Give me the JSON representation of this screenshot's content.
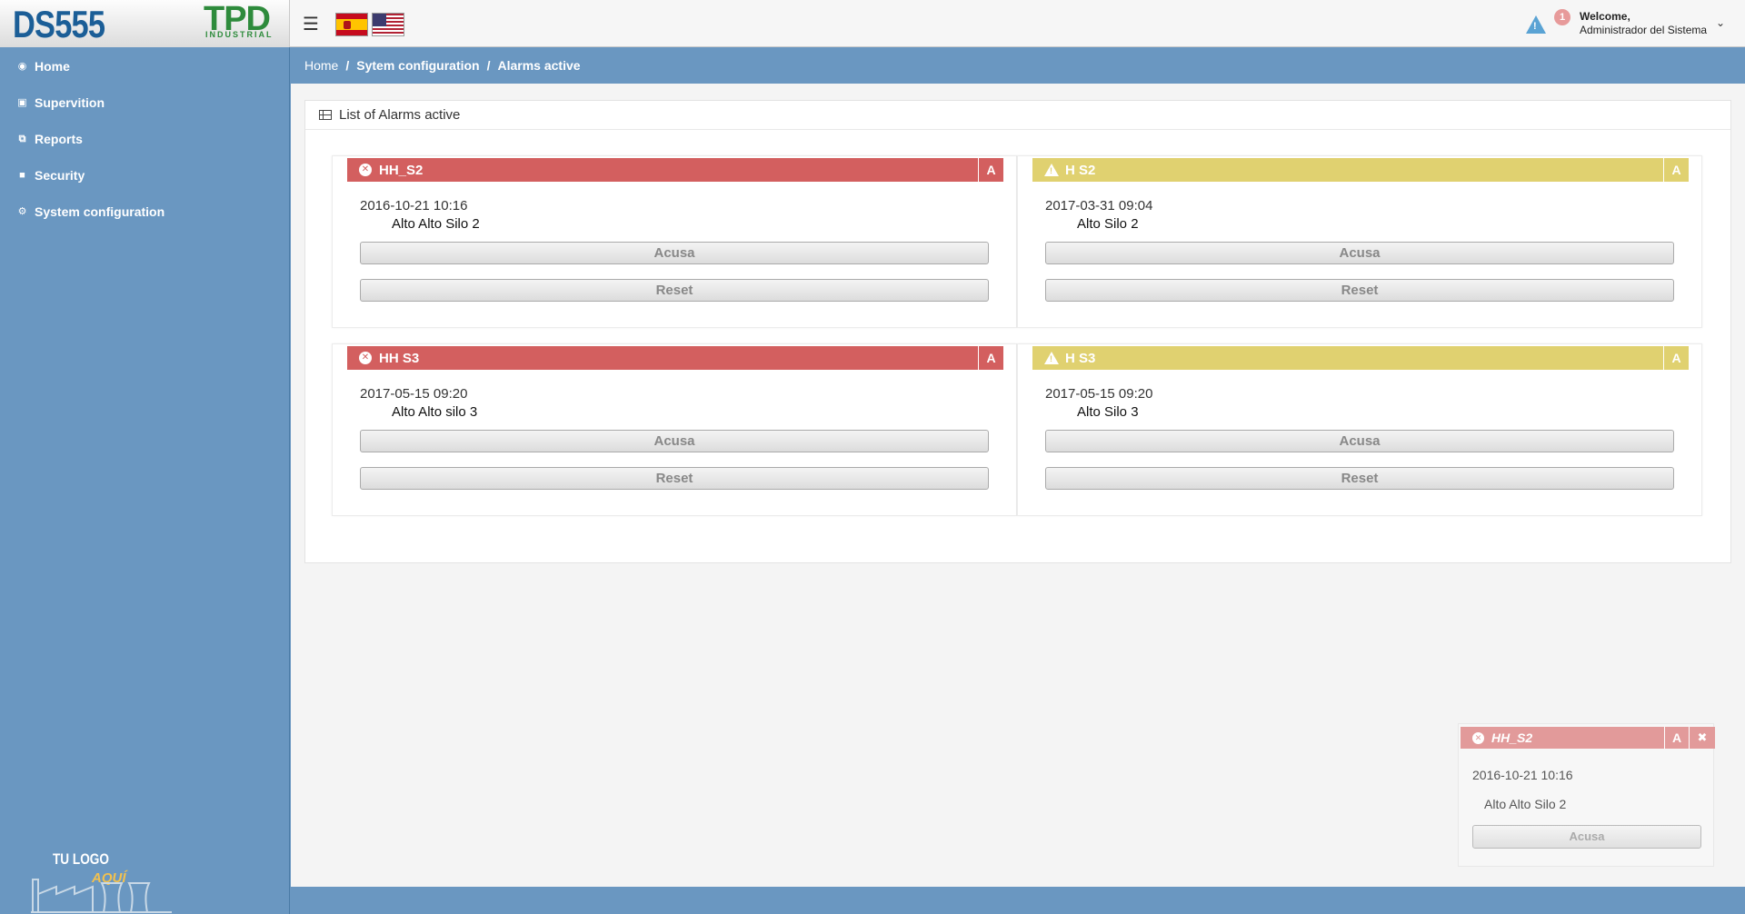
{
  "brand": {
    "logo_left": "DS555",
    "logo_right": "TPD",
    "logo_right_sub": "INDUSTRIAL"
  },
  "header": {
    "notification_count": "1",
    "welcome_line1": "Welcome,",
    "welcome_line2": "Administrador del Sistema"
  },
  "sidebar": {
    "items": [
      {
        "label": "Home",
        "icon": "dashboard-icon"
      },
      {
        "label": "Supervition",
        "icon": "supervision-icon"
      },
      {
        "label": "Reports",
        "icon": "reports-icon"
      },
      {
        "label": "Security",
        "icon": "lock-icon"
      },
      {
        "label": "System configuration",
        "icon": "gear-icon"
      }
    ],
    "footer_logo_line1": "TU LOGO",
    "footer_logo_line2": "AQUÍ"
  },
  "breadcrumb": {
    "items": [
      "Home",
      "Sytem configuration",
      "Alarms active"
    ],
    "separator": "/"
  },
  "panel": {
    "title": "List of Alarms active"
  },
  "alarms": [
    {
      "name": "HH_S2",
      "severity": "critical",
      "ack_label": "A",
      "date": "2016-10-21 10:16",
      "description": "Alto Alto Silo 2",
      "acusa_label": "Acusa",
      "reset_label": "Reset"
    },
    {
      "name": "H S2",
      "severity": "warning",
      "ack_label": "A",
      "date": "2017-03-31 09:04",
      "description": "Alto Silo 2",
      "acusa_label": "Acusa",
      "reset_label": "Reset"
    },
    {
      "name": "HH S3",
      "severity": "critical",
      "ack_label": "A",
      "date": "2017-05-15 09:20",
      "description": "Alto Alto silo 3",
      "acusa_label": "Acusa",
      "reset_label": "Reset"
    },
    {
      "name": "H S3",
      "severity": "warning",
      "ack_label": "A",
      "date": "2017-05-15 09:20",
      "description": "Alto Silo 3",
      "acusa_label": "Acusa",
      "reset_label": "Reset"
    }
  ],
  "toast": {
    "name": "HH_S2",
    "ack_label": "A",
    "close_label": "✖",
    "date": "2016-10-21 10:16",
    "description": "Alto Alto Silo 2",
    "acusa_label": "Acusa"
  },
  "colors": {
    "critical": "#d35f5f",
    "warning": "#e0d170",
    "sidebar": "#6a97c1",
    "toast_header": "#e29a9a"
  }
}
